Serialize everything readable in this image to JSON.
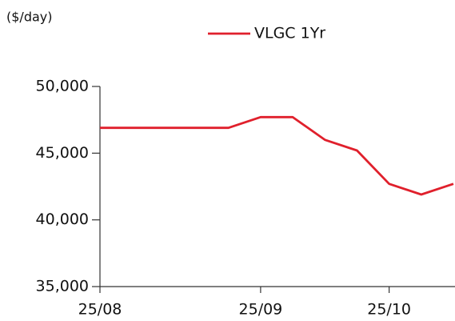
{
  "chart_data": {
    "type": "line",
    "y_label": "($/day)",
    "categories": [
      "25/08",
      null,
      null,
      null,
      null,
      "25/09",
      null,
      null,
      null,
      "25/10",
      null,
      null
    ],
    "series": [
      {
        "name": "VLGC 1Yr",
        "color": "#e0202c",
        "values": [
          46900,
          46900,
          46900,
          46900,
          46900,
          47700,
          47700,
          46000,
          45200,
          42700,
          41900,
          42700
        ]
      }
    ],
    "ylim": [
      35000,
      50000
    ],
    "yticks": [
      {
        "value": 35000,
        "label": "35,000"
      },
      {
        "value": 40000,
        "label": "40,000"
      },
      {
        "value": 45000,
        "label": "45,000"
      },
      {
        "value": 50000,
        "label": "50,000"
      }
    ]
  }
}
